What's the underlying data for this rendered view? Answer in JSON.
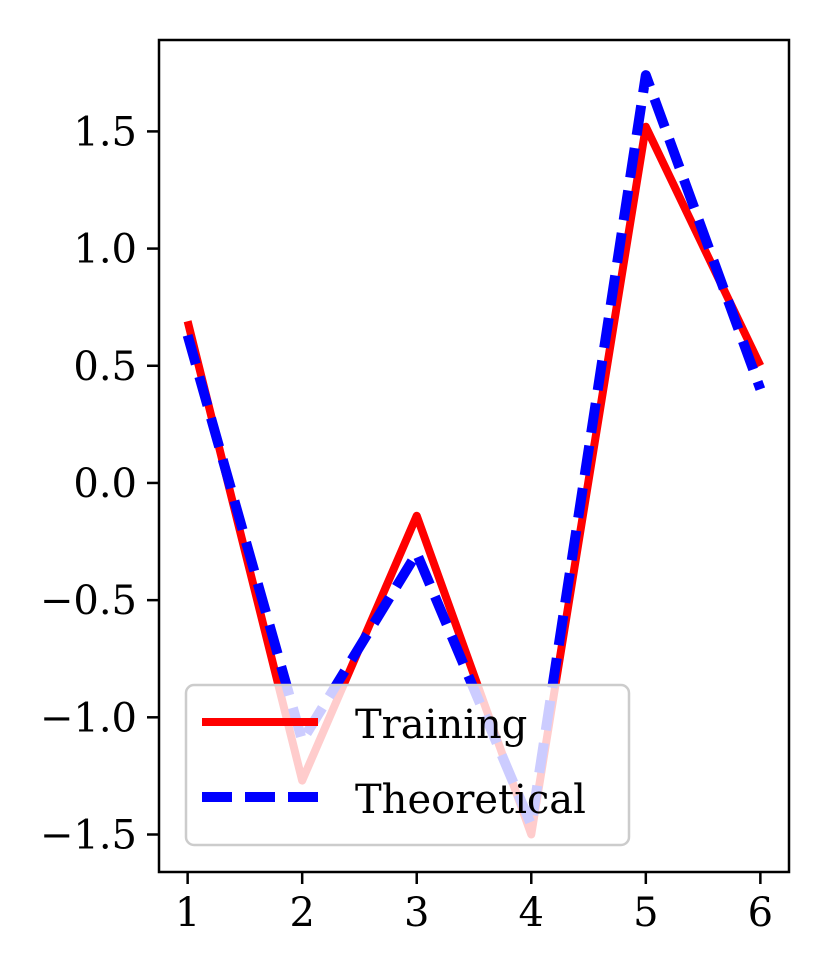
{
  "chart_data": {
    "type": "line",
    "x": [
      1,
      2,
      3,
      4,
      5,
      6
    ],
    "xticks": [
      "1",
      "2",
      "3",
      "4",
      "5",
      "6"
    ],
    "yticks": [
      "−1.5",
      "−1.0",
      "−0.5",
      "0.0",
      "0.5",
      "1.0",
      "1.5"
    ],
    "ytick_values": [
      -1.5,
      -1.0,
      -0.5,
      0.0,
      0.5,
      1.0,
      1.5
    ],
    "xlim": [
      0.75,
      6.25
    ],
    "ylim": [
      -1.66,
      1.89
    ],
    "grid": false,
    "legend_position": "lower-left",
    "series": [
      {
        "name": "Training",
        "values": [
          0.69,
          -1.27,
          -0.14,
          -1.5,
          1.52,
          0.5
        ],
        "color": "#ff0000",
        "style": "solid"
      },
      {
        "name": "Theoretical",
        "values": [
          0.63,
          -1.1,
          -0.3,
          -1.46,
          1.74,
          0.4
        ],
        "color": "#0000ff",
        "style": "dashed"
      }
    ]
  }
}
